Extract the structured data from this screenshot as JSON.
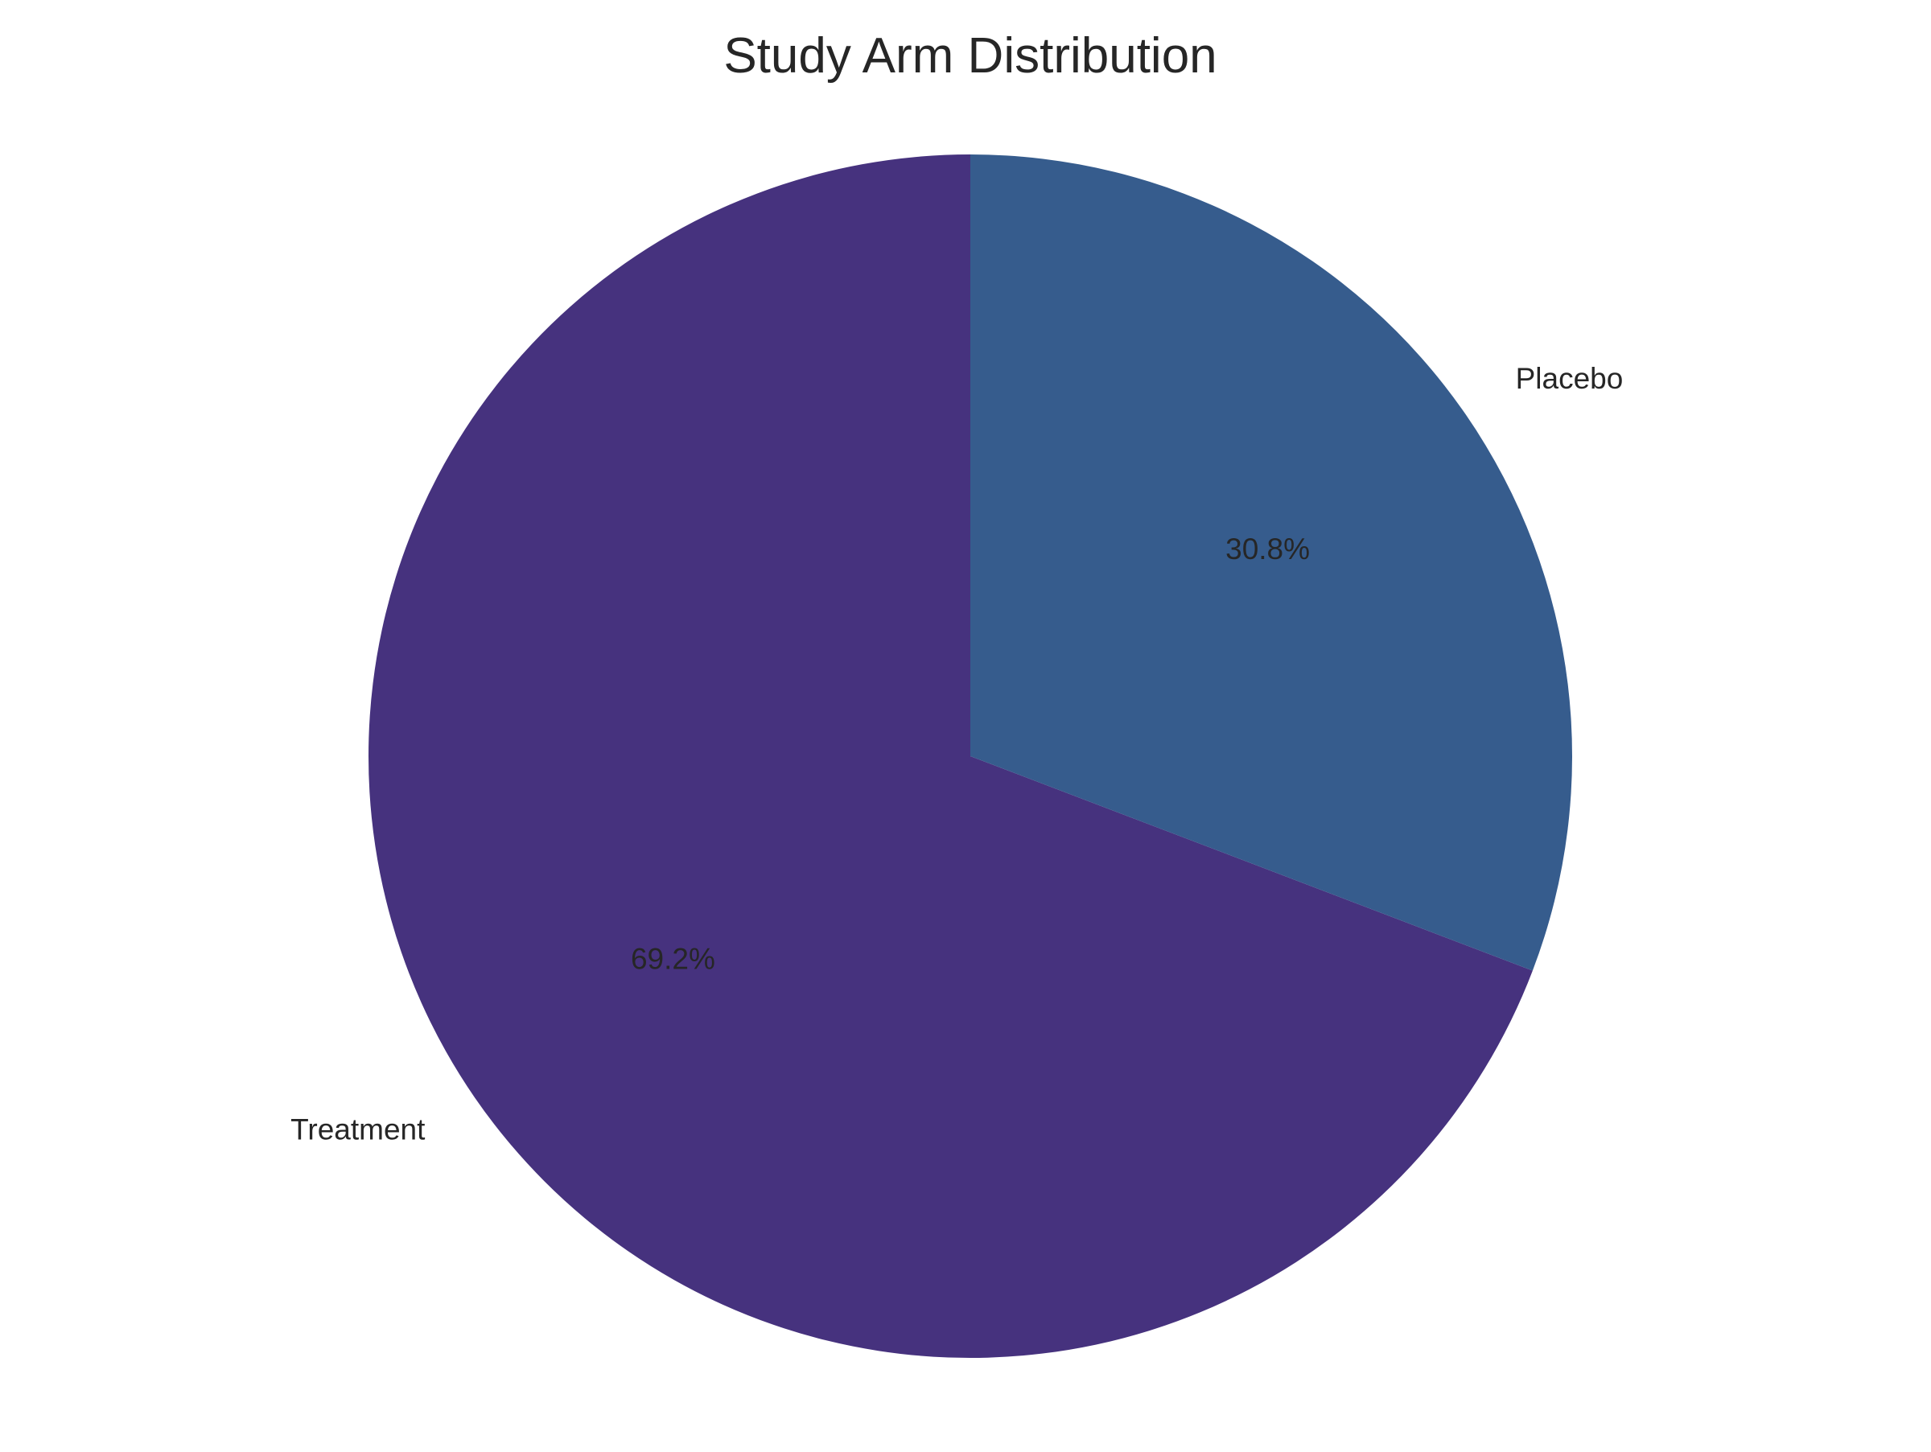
{
  "chart_data": {
    "type": "pie",
    "title": "Study Arm Distribution",
    "categories": [
      "Treatment",
      "Placebo"
    ],
    "values": [
      69.2,
      30.8
    ],
    "percent_labels": [
      "69.2%",
      "30.8%"
    ],
    "colors": [
      "#46327e",
      "#365c8d"
    ],
    "start_angle_deg": 90,
    "direction": "counterclockwise",
    "legend": "none"
  }
}
